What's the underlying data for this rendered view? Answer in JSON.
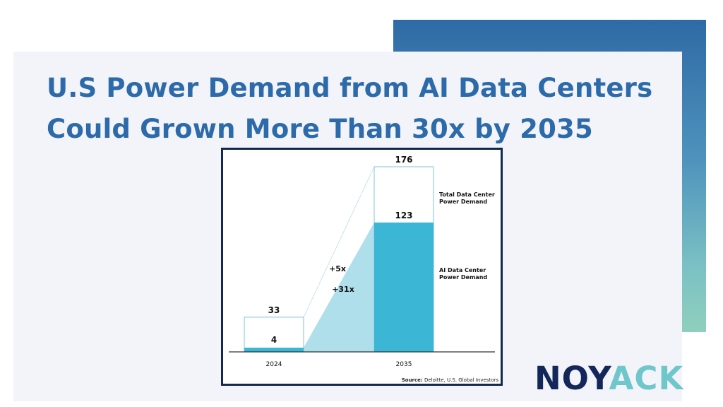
{
  "headline": {
    "line1": "U.S Power Demand from AI Data Centers",
    "line2": "Could Grown More Than 30x by 2035"
  },
  "chart_data": {
    "type": "bar",
    "categories": [
      "2024",
      "2035"
    ],
    "series": [
      {
        "name": "Total Data Center Power Demand",
        "values": [
          33,
          176
        ],
        "color": "#ffffff",
        "stroke": "#7cc3dd"
      },
      {
        "name": "AI Data Center Power Demand",
        "values": [
          4,
          123
        ],
        "color": "#3cb6d5"
      }
    ],
    "annotations": [
      "+5x",
      "+31x"
    ],
    "ylim": [
      0,
      176
    ],
    "grid": false,
    "source": {
      "label": "Source:",
      "text": "Deloitte, U.S. Global Investors"
    }
  },
  "logo": {
    "part1": "NOY",
    "part2": "ACK"
  },
  "colors": {
    "accent": "#2c6aa9",
    "navy": "#13294f",
    "teal": "#3cb6d5",
    "connector_fill": "#a7dbea"
  }
}
